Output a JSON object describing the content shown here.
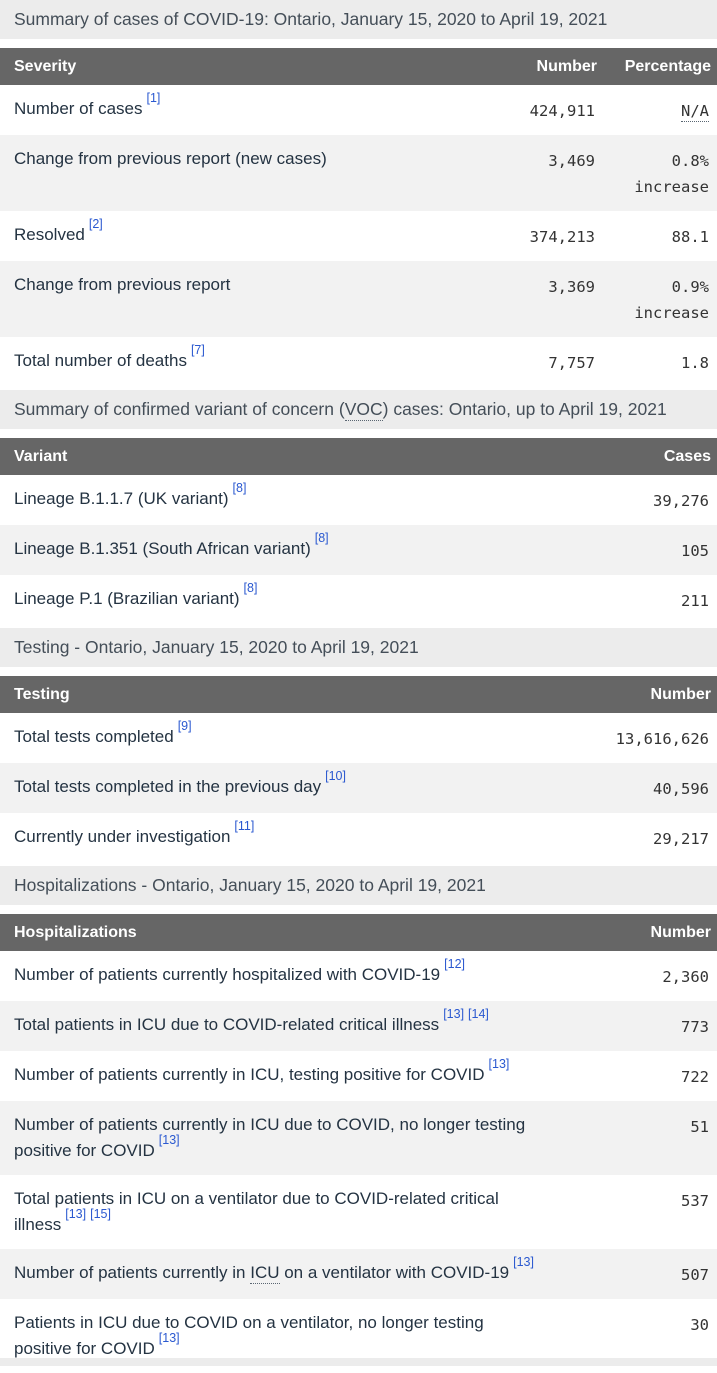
{
  "colors": {
    "header_bg": "#666666",
    "caption_bg": "#ececec",
    "zebra_row": "#f2f2f2",
    "link_blue": "#2b59d0",
    "label_text": "#243342",
    "number_text": "#333333",
    "caption_text": "#444e58"
  },
  "tables": [
    {
      "id": "cases",
      "caption_parts": [
        {
          "text": "Summary of cases of COVID-19: Ontario, January 15, 2020 to April 19, 2021"
        }
      ],
      "columns": [
        {
          "label": "Severity",
          "align": "left"
        },
        {
          "label": "Number",
          "align": "right"
        },
        {
          "label": "Percentage",
          "align": "right"
        }
      ],
      "rows": [
        {
          "label_parts": [
            {
              "text": "Number of cases"
            }
          ],
          "refs": [
            "[1]"
          ],
          "cells": [
            {
              "lines": [
                "424,911"
              ]
            },
            {
              "lines": [
                "N/A"
              ],
              "abbr_first": true
            }
          ]
        },
        {
          "label_parts": [
            {
              "text": "Change from previous report (new cases)"
            }
          ],
          "refs": [],
          "cells": [
            {
              "lines": [
                "3,469"
              ]
            },
            {
              "lines": [
                "0.8%",
                "increase"
              ]
            }
          ]
        },
        {
          "label_parts": [
            {
              "text": "Resolved"
            }
          ],
          "refs": [
            "[2]"
          ],
          "cells": [
            {
              "lines": [
                "374,213"
              ]
            },
            {
              "lines": [
                "88.1"
              ]
            }
          ]
        },
        {
          "label_parts": [
            {
              "text": "Change from previous report"
            }
          ],
          "refs": [],
          "cells": [
            {
              "lines": [
                "3,369"
              ]
            },
            {
              "lines": [
                "0.9%",
                "increase"
              ]
            }
          ]
        },
        {
          "label_parts": [
            {
              "text": "Total number of deaths"
            }
          ],
          "refs": [
            "[7]"
          ],
          "cells": [
            {
              "lines": [
                "7,757"
              ]
            },
            {
              "lines": [
                "1.8"
              ]
            }
          ]
        }
      ]
    },
    {
      "id": "variants",
      "caption_parts": [
        {
          "text": "Summary of confirmed variant of concern ("
        },
        {
          "text": "VOC",
          "abbr": true
        },
        {
          "text": ") cases: Ontario, up to April 19, 2021"
        }
      ],
      "columns": [
        {
          "label": "Variant",
          "align": "left"
        },
        {
          "label": "Cases",
          "align": "right"
        }
      ],
      "rows": [
        {
          "label_parts": [
            {
              "text": "Lineage B.1.1.7 (UK variant)"
            }
          ],
          "refs": [
            "[8]"
          ],
          "cells": [
            {
              "lines": [
                "39,276"
              ]
            }
          ]
        },
        {
          "label_parts": [
            {
              "text": "Lineage B.1.351 (South African variant)"
            }
          ],
          "refs": [
            "[8]"
          ],
          "cells": [
            {
              "lines": [
                "105"
              ]
            }
          ]
        },
        {
          "label_parts": [
            {
              "text": "Lineage P.1 (Brazilian variant)"
            }
          ],
          "refs": [
            "[8]"
          ],
          "cells": [
            {
              "lines": [
                "211"
              ]
            }
          ]
        }
      ]
    },
    {
      "id": "testing",
      "caption_parts": [
        {
          "text": "Testing - Ontario, January 15, 2020 to April 19, 2021"
        }
      ],
      "columns": [
        {
          "label": "Testing",
          "align": "left"
        },
        {
          "label": "Number",
          "align": "right"
        }
      ],
      "rows": [
        {
          "label_parts": [
            {
              "text": "Total tests completed"
            }
          ],
          "refs": [
            "[9]"
          ],
          "cells": [
            {
              "lines": [
                "13,616,626"
              ]
            }
          ]
        },
        {
          "label_parts": [
            {
              "text": "Total tests completed in the previous day"
            }
          ],
          "refs": [
            "[10]"
          ],
          "cells": [
            {
              "lines": [
                "40,596"
              ]
            }
          ]
        },
        {
          "label_parts": [
            {
              "text": "Currently under investigation"
            }
          ],
          "refs": [
            "[11]"
          ],
          "cells": [
            {
              "lines": [
                "29,217"
              ]
            }
          ]
        }
      ]
    },
    {
      "id": "hospitalizations",
      "caption_parts": [
        {
          "text": "Hospitalizations - Ontario, January 15, 2020 to April 19, 2021"
        }
      ],
      "columns": [
        {
          "label": "Hospitalizations",
          "align": "left"
        },
        {
          "label": "Number",
          "align": "right"
        }
      ],
      "rows": [
        {
          "label_parts": [
            {
              "text": "Number of patients currently hospitalized with COVID-19"
            }
          ],
          "refs": [
            "[12]"
          ],
          "cells": [
            {
              "lines": [
                "2,360"
              ]
            }
          ]
        },
        {
          "label_parts": [
            {
              "text": "Total patients in ICU due to COVID-related critical illness"
            }
          ],
          "refs": [
            "[13]",
            "[14]"
          ],
          "cells": [
            {
              "lines": [
                "773"
              ]
            }
          ]
        },
        {
          "label_parts": [
            {
              "text": "Number of patients currently in ICU, testing positive for COVID"
            }
          ],
          "refs": [
            "[13]"
          ],
          "cells": [
            {
              "lines": [
                "722"
              ]
            }
          ]
        },
        {
          "label_parts": [
            {
              "text": "Number of patients currently in ICU due to COVID, no longer testing positive for COVID"
            }
          ],
          "refs": [
            "[13]"
          ],
          "cells": [
            {
              "lines": [
                "51"
              ]
            }
          ]
        },
        {
          "label_parts": [
            {
              "text": "Total patients in ICU on a ventilator due to COVID-related critical illness"
            }
          ],
          "refs": [
            "[13]",
            "[15]"
          ],
          "cells": [
            {
              "lines": [
                "537"
              ]
            }
          ]
        },
        {
          "label_parts": [
            {
              "text": "Number of patients currently in "
            },
            {
              "text": "ICU",
              "abbr": true
            },
            {
              "text": " on a ventilator with COVID-19"
            }
          ],
          "refs": [
            "[13]"
          ],
          "cells": [
            {
              "lines": [
                "507"
              ]
            }
          ]
        },
        {
          "label_parts": [
            {
              "text": "Patients in ICU due to COVID on a ventilator, no longer testing positive for COVID"
            }
          ],
          "refs": [
            "[13]"
          ],
          "cells": [
            {
              "lines": [
                "30"
              ]
            }
          ]
        }
      ]
    }
  ]
}
